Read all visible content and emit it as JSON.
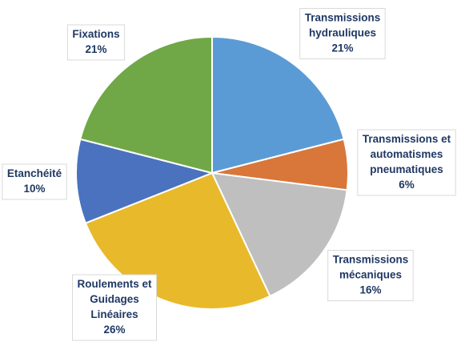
{
  "chart_data": {
    "type": "pie",
    "title": "",
    "slices": [
      {
        "label_lines": [
          "Transmissions",
          "hydrauliques"
        ],
        "value": 21,
        "value_label": "21%",
        "color": "#5b9bd5"
      },
      {
        "label_lines": [
          "Transmissions et",
          "automatismes",
          "pneumatiques"
        ],
        "value": 6,
        "value_label": "6%",
        "color": "#d9763a"
      },
      {
        "label_lines": [
          "Transmissions",
          "mécaniques"
        ],
        "value": 16,
        "value_label": "16%",
        "color": "#bfbfbf"
      },
      {
        "label_lines": [
          "Roulements et",
          "Guidages",
          "Linéaires"
        ],
        "value": 26,
        "value_label": "26%",
        "color": "#e8b92a"
      },
      {
        "label_lines": [
          "Etanchéité"
        ],
        "value": 10,
        "value_label": "10%",
        "color": "#4a72be"
      },
      {
        "label_lines": [
          "Fixations"
        ],
        "value": 21,
        "value_label": "21%",
        "color": "#70a847"
      }
    ],
    "start_angle_deg": 0,
    "direction": "clockwise",
    "legend": "none",
    "data_labels": "outside with callout boxes"
  }
}
